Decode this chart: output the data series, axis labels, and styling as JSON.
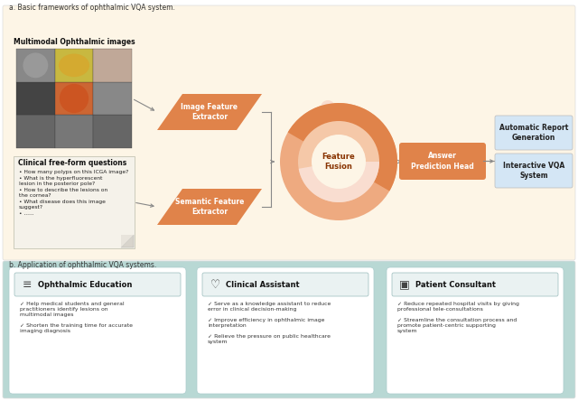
{
  "fig_width": 6.4,
  "fig_height": 4.44,
  "dpi": 100,
  "bg_color": "#ffffff",
  "section_a_bg": "#fdf5e6",
  "section_b_bg": "#b8d8d4",
  "title_a": "a. Basic frameworks of ophthalmic VQA system.",
  "title_b": "b. Application of ophthalmic VQA systems.",
  "multimodal_title": "Multimodal Ophthalmic images",
  "clinical_title": "Clinical free-form questions",
  "clinical_questions": [
    "How many polyps on this ICGA image?",
    "What is the hyperfluorescent\nlesion in the posterior pole?",
    "How to describe the lesions on\nthe cornea?",
    "What disease does this image\nsuggest?",
    "......"
  ],
  "box_image_feat": "Image Feature\nExtractor",
  "box_semantic_feat": "Semantic Feature\nExtractor",
  "box_answer": "Answer\nPrediction Head",
  "circle_label": "Feature\nFusion",
  "output1": "Automatic Report\nGeneration",
  "output2": "Interactive VQA\nSystem",
  "orange_dark": "#e0834a",
  "orange_mid": "#eeaa80",
  "orange_light": "#f5c8a8",
  "orange_pale": "#f9ddd0",
  "blue_output": "#d4e6f5",
  "card_bg": "#ffffff",
  "edu_title": "Ophthalmic Education",
  "clin_title": "Clinical Assistant",
  "pat_title": "Patient Consultant",
  "edu_bullets": [
    "Help medical students and general\npractitioners identify lesions on\nmultimodal images",
    "Shorten the training time for accurate\nimaging diagnosis"
  ],
  "clin_bullets": [
    "Serve as a knowledge assistant to reduce\nerror in clinical decision-making",
    "Improve efficiency in ophthalmic image\ninterpretation",
    "Relieve the pressure on public healthcare\nsystem"
  ],
  "pat_bullets": [
    "Reduce repeated hospital visits by giving\nprofessional tele-consultations",
    "Streamline the consultation process and\npromote patient-centric supporting\nsystem"
  ]
}
